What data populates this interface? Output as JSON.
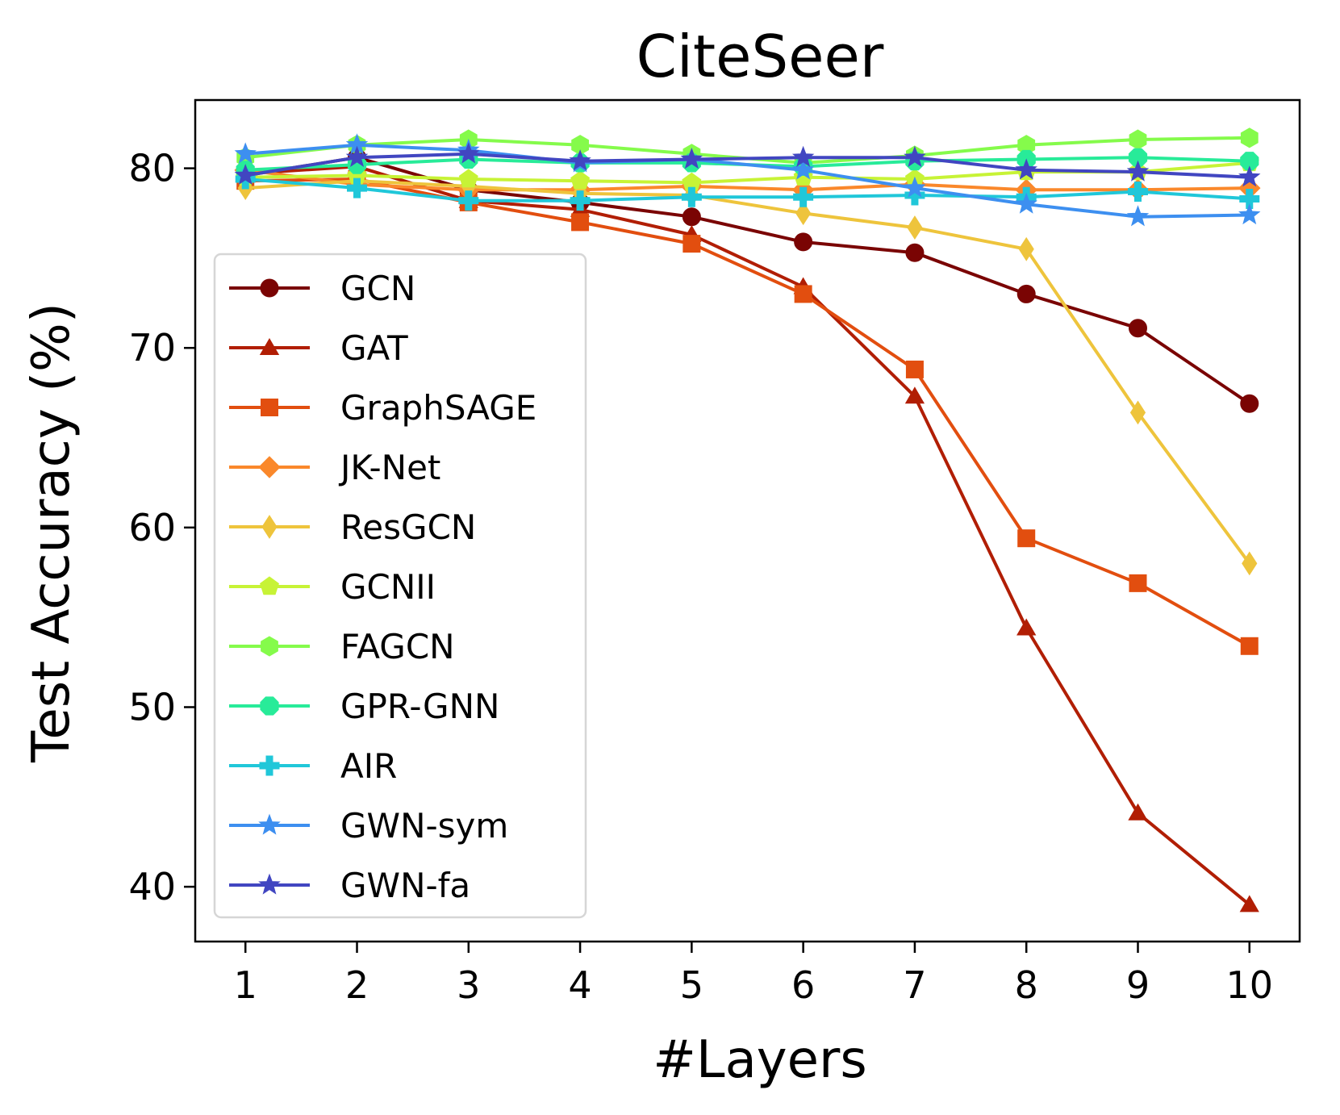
{
  "chart_data": {
    "type": "line",
    "title": "CiteSeer",
    "xlabel": "#Layers",
    "ylabel": "Test Accuracy (%)",
    "x": [
      1,
      2,
      3,
      4,
      5,
      6,
      7,
      8,
      9,
      10
    ],
    "xticks": [
      1,
      2,
      3,
      4,
      5,
      6,
      7,
      8,
      9,
      10
    ],
    "yticks": [
      40,
      50,
      60,
      70,
      80
    ],
    "xlim": [
      0.55,
      10.45
    ],
    "ylim": [
      36.95,
      83.8
    ],
    "legend_position": "center-left",
    "series": [
      {
        "name": "GCN",
        "color": "#7a0403",
        "marker": "circle",
        "values": [
          79.6,
          80.6,
          78.8,
          78.1,
          77.3,
          75.9,
          75.3,
          73.0,
          71.1,
          66.9
        ]
      },
      {
        "name": "GAT",
        "color": "#b11e04",
        "marker": "triangle",
        "values": [
          79.7,
          80.1,
          78.2,
          77.7,
          76.3,
          73.4,
          67.3,
          54.4,
          44.1,
          39.0
        ]
      },
      {
        "name": "GraphSAGE",
        "color": "#e24e0f",
        "marker": "square",
        "values": [
          79.3,
          79.4,
          78.1,
          77.0,
          75.8,
          73.0,
          68.8,
          59.4,
          56.9,
          53.4
        ]
      },
      {
        "name": "JK-Net",
        "color": "#fa882b",
        "marker": "diamond",
        "values": [
          79.9,
          79.1,
          78.8,
          78.8,
          79.0,
          78.8,
          79.1,
          78.8,
          78.8,
          78.9
        ]
      },
      {
        "name": "ResGCN",
        "color": "#eec43c",
        "marker": "thin-diamond",
        "values": [
          78.9,
          79.3,
          79.0,
          78.6,
          78.5,
          77.5,
          76.7,
          75.5,
          66.4,
          58.0
        ]
      },
      {
        "name": "GCNII",
        "color": "#c7f336",
        "marker": "pentagon",
        "values": [
          79.5,
          79.6,
          79.4,
          79.3,
          79.2,
          79.5,
          79.4,
          79.8,
          79.8,
          80.3
        ]
      },
      {
        "name": "FAGCN",
        "color": "#85fb4b",
        "marker": "hexagon",
        "values": [
          80.6,
          81.3,
          81.6,
          81.3,
          80.8,
          80.3,
          80.7,
          81.3,
          81.6,
          81.7
        ]
      },
      {
        "name": "GPR-GNN",
        "color": "#28eb99",
        "marker": "octagon",
        "values": [
          79.9,
          80.2,
          80.5,
          80.3,
          80.3,
          80.1,
          80.4,
          80.5,
          80.6,
          80.4
        ]
      },
      {
        "name": "AIR",
        "color": "#20c7d9",
        "marker": "plus",
        "values": [
          79.4,
          78.9,
          78.2,
          78.2,
          78.4,
          78.4,
          78.5,
          78.4,
          78.7,
          78.3
        ]
      },
      {
        "name": "GWN-sym",
        "color": "#3d8ff0",
        "marker": "star",
        "values": [
          80.8,
          81.3,
          81.0,
          80.3,
          80.5,
          79.9,
          78.9,
          78.0,
          77.3,
          77.4
        ]
      },
      {
        "name": "GWN-fa",
        "color": "#4146c1",
        "marker": "star",
        "values": [
          79.6,
          80.6,
          80.8,
          80.4,
          80.5,
          80.6,
          80.6,
          79.9,
          79.8,
          79.5
        ]
      }
    ]
  }
}
